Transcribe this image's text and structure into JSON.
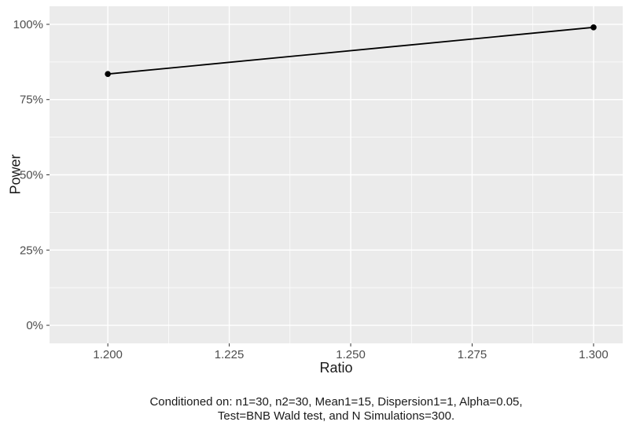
{
  "chart_data": {
    "type": "line",
    "title": "",
    "xlabel": "Ratio",
    "ylabel": "Power",
    "series": [
      {
        "name": "Power",
        "x": [
          1.2,
          1.3
        ],
        "y": [
          0.835,
          0.99
        ]
      }
    ],
    "x_ticks": {
      "values": [
        1.2,
        1.225,
        1.25,
        1.275,
        1.3
      ],
      "labels": [
        "1.200",
        "1.225",
        "1.250",
        "1.275",
        "1.300"
      ]
    },
    "y_ticks": {
      "values": [
        0,
        0.25,
        0.5,
        0.75,
        1.0
      ],
      "labels": [
        "0%",
        "25%",
        "50%",
        "75%",
        "100%"
      ]
    },
    "xlim": [
      1.188,
      1.306
    ],
    "ylim": [
      -0.06,
      1.06
    ],
    "grid": true,
    "legend": "none",
    "panel_background": "#EBEBEB",
    "grid_major_color": "#FFFFFF",
    "grid_minor_color": "#FFFFFF",
    "line_color": "#000000",
    "point_color": "#000000",
    "tick_label_color": "#4D4D4D",
    "axis_tick_color": "#333333",
    "caption_line1": "Conditioned on: n1=30, n2=30, Mean1=15, Dispersion1=1, Alpha=0.05,",
    "caption_line2": "Test=BNB Wald test, and N Simulations=300."
  }
}
